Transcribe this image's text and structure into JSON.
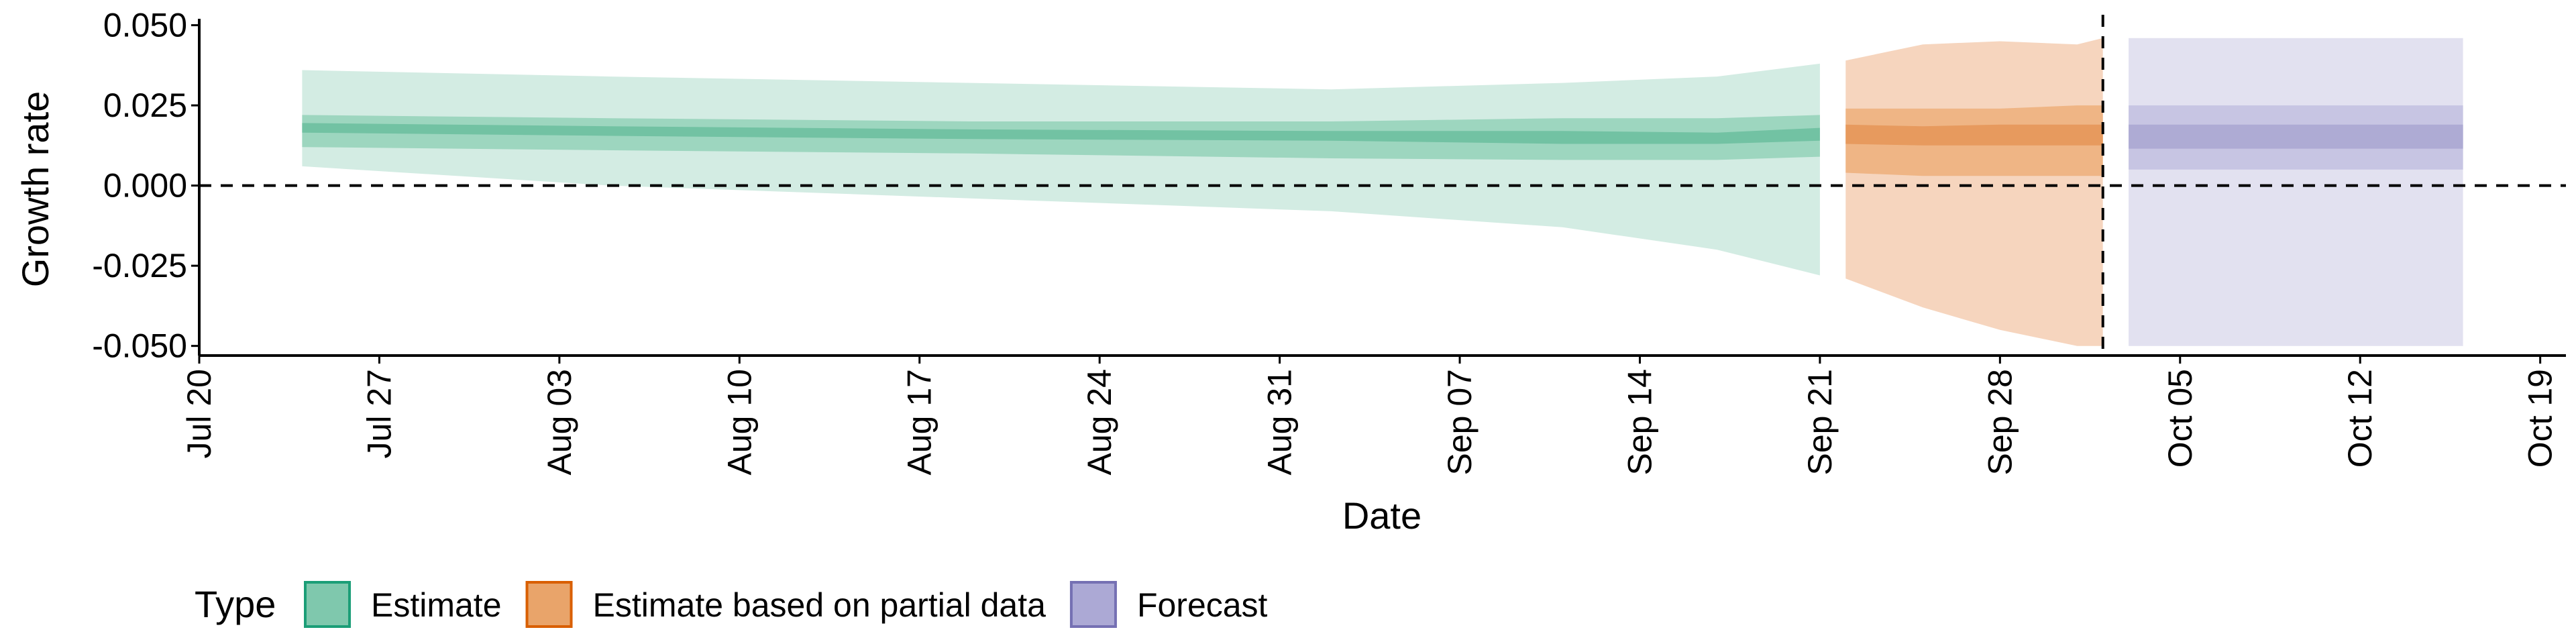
{
  "chart_data": {
    "type": "area",
    "xlabel": "Date",
    "ylabel": "Growth rate",
    "ylim": [
      -0.053,
      0.052
    ],
    "xlim": [
      "2020-07-20",
      "2020-10-20"
    ],
    "x_ticks": [
      "2020-07-20",
      "2020-07-27",
      "2020-08-03",
      "2020-08-10",
      "2020-08-17",
      "2020-08-24",
      "2020-08-31",
      "2020-09-07",
      "2020-09-14",
      "2020-09-21",
      "2020-09-28",
      "2020-10-05",
      "2020-10-12",
      "2020-10-19"
    ],
    "x_tick_labels": [
      "Jul 20",
      "Jul 27",
      "Aug 03",
      "Aug 10",
      "Aug 17",
      "Aug 24",
      "Aug 31",
      "Sep 07",
      "Sep 14",
      "Sep 21",
      "Sep 28",
      "Oct 05",
      "Oct 12",
      "Oct 19"
    ],
    "y_ticks": [
      0.05,
      0.025,
      0,
      -0.025,
      -0.05
    ],
    "y_tick_labels": [
      "0.050",
      "0.025",
      "0.000",
      "-0.025",
      "-0.050"
    ],
    "reference_lines": {
      "horizontal_y": 0,
      "vertical_x": "2020-10-02"
    },
    "legend": {
      "title": "Type",
      "placement": "bottom",
      "items": [
        {
          "label": "Estimate",
          "fill": "#7fc8ad",
          "stroke": "#1b9e77"
        },
        {
          "label": "Estimate based on partial data",
          "fill": "#e9a46a",
          "stroke": "#d95f02"
        },
        {
          "label": "Forecast",
          "fill": "#aca9d5",
          "stroke": "#7570b3"
        }
      ]
    },
    "series": [
      {
        "name": "Estimate",
        "colors": {
          "outer": "#d3ece3",
          "mid": "#9dd6bf",
          "inner": "#72c2a3"
        },
        "x": [
          "2020-07-24",
          "2020-08-05",
          "2020-08-19",
          "2020-09-02",
          "2020-09-11",
          "2020-09-17",
          "2020-09-21"
        ],
        "median": [
          0.018,
          0.017,
          0.016,
          0.0155,
          0.015,
          0.0148,
          0.016
        ],
        "inner_lower": [
          0.0165,
          0.0155,
          0.0145,
          0.014,
          0.013,
          0.013,
          0.014
        ],
        "inner_upper": [
          0.0195,
          0.0185,
          0.0175,
          0.017,
          0.017,
          0.0165,
          0.018
        ],
        "mid_lower": [
          0.012,
          0.011,
          0.01,
          0.0085,
          0.008,
          0.008,
          0.009
        ],
        "mid_upper": [
          0.022,
          0.021,
          0.02,
          0.02,
          0.021,
          0.021,
          0.022
        ],
        "outer_lower": [
          0.006,
          0.0,
          -0.004,
          -0.008,
          -0.013,
          -0.02,
          -0.028
        ],
        "outer_upper": [
          0.036,
          0.034,
          0.032,
          0.03,
          0.032,
          0.034,
          0.038
        ]
      },
      {
        "name": "Estimate based on partial data",
        "colors": {
          "outer": "#f6d5be",
          "mid": "#efb585",
          "inner": "#e79a5e"
        },
        "x": [
          "2020-09-22",
          "2020-09-25",
          "2020-09-28",
          "2020-10-01",
          "2020-10-02"
        ],
        "median": [
          0.016,
          0.015,
          0.015,
          0.016,
          0.016
        ],
        "inner_lower": [
          0.013,
          0.0125,
          0.0125,
          0.0125,
          0.0125
        ],
        "inner_upper": [
          0.019,
          0.0185,
          0.019,
          0.019,
          0.019
        ],
        "mid_lower": [
          0.004,
          0.003,
          0.003,
          0.003,
          0.003
        ],
        "mid_upper": [
          0.024,
          0.024,
          0.024,
          0.025,
          0.025
        ],
        "outer_lower": [
          -0.029,
          -0.038,
          -0.045,
          -0.05,
          -0.05
        ],
        "outer_upper": [
          0.039,
          0.044,
          0.045,
          0.044,
          0.046
        ]
      },
      {
        "name": "Forecast",
        "colors": {
          "outer": "#e2e1f0",
          "mid": "#c7c5e3",
          "inner": "#aeabd4"
        },
        "x": [
          "2020-10-03",
          "2020-10-16"
        ],
        "median": [
          0.015,
          0.015
        ],
        "inner_lower": [
          0.0115,
          0.0115
        ],
        "inner_upper": [
          0.019,
          0.019
        ],
        "mid_lower": [
          0.005,
          0.005
        ],
        "mid_upper": [
          0.025,
          0.025
        ],
        "outer_lower": [
          -0.05,
          -0.05
        ],
        "outer_upper": [
          0.046,
          0.046
        ]
      }
    ]
  }
}
